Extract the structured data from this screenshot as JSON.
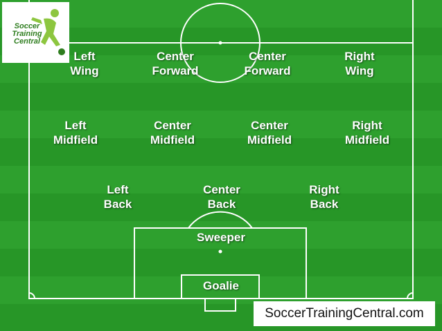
{
  "logo": {
    "line1": "Soccer",
    "line2": "Training",
    "line3": "Central"
  },
  "website": "SoccerTrainingCentral.com",
  "positions": {
    "left_wing": [
      "Left",
      "Wing"
    ],
    "center_forward_1": [
      "Center",
      "Forward"
    ],
    "center_forward_2": [
      "Center",
      "Forward"
    ],
    "right_wing": [
      "Right",
      "Wing"
    ],
    "left_midfield": [
      "Left",
      "Midfield"
    ],
    "center_midfield_1": [
      "Center",
      "Midfield"
    ],
    "center_midfield_2": [
      "Center",
      "Midfield"
    ],
    "right_midfield": [
      "Right",
      "Midfield"
    ],
    "left_back": [
      "Left",
      "Back"
    ],
    "center_back": [
      "Center",
      "Back"
    ],
    "right_back": [
      "Right",
      "Back"
    ],
    "sweeper": "Sweeper",
    "goalie": "Goalie"
  },
  "colors": {
    "pitch": "#2ea02e",
    "lines": "#ffffff",
    "text": "#ffffff",
    "logo_green": "#2e7d1e"
  }
}
